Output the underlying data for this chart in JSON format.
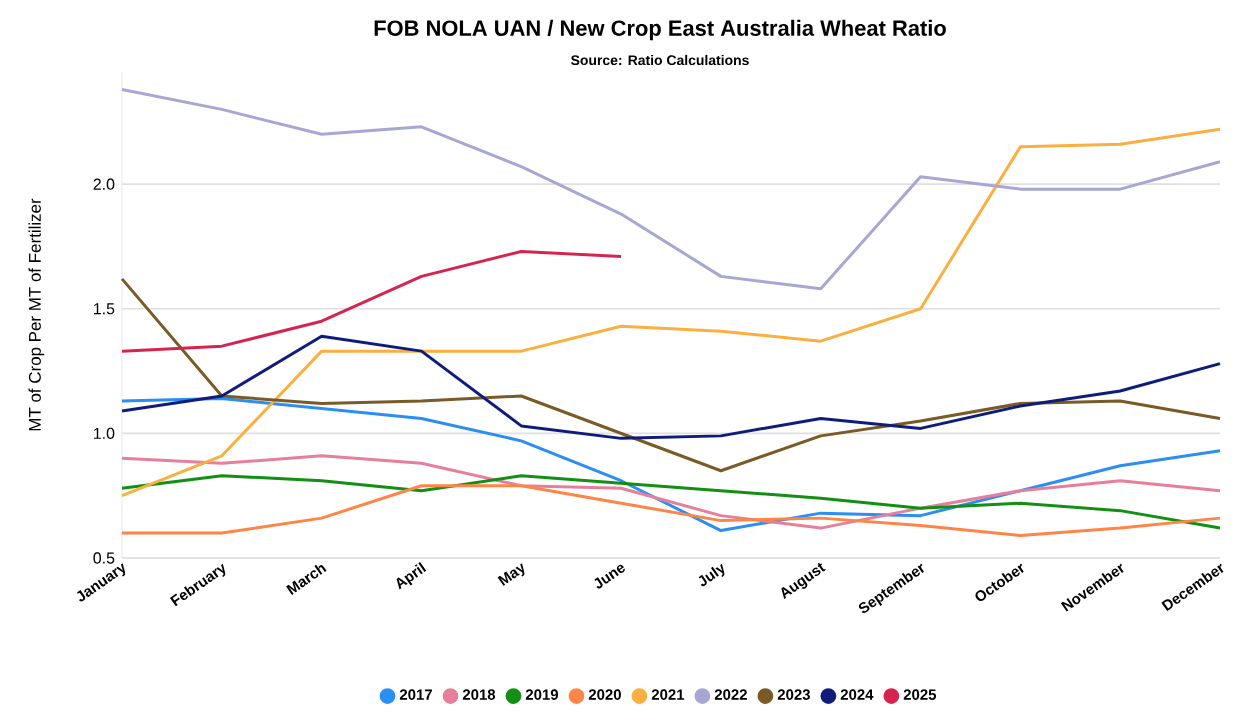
{
  "chart_data": {
    "type": "line",
    "title": "FOB NOLA UAN / New Crop East Australia Wheat Ratio",
    "subtitle": "Source: Ratio Calculations",
    "ylabel": "MT of Crop Per MT of Fertilizer",
    "categories": [
      "January",
      "February",
      "March",
      "April",
      "May",
      "June",
      "July",
      "August",
      "September",
      "October",
      "November",
      "December"
    ],
    "series": [
      {
        "name": "2017",
        "color": "#2b8ef0",
        "values": [
          1.13,
          1.14,
          1.1,
          1.06,
          0.97,
          0.81,
          0.61,
          0.68,
          0.67,
          0.77,
          0.87,
          0.93
        ]
      },
      {
        "name": "2018",
        "color": "#e57f9c",
        "values": [
          0.9,
          0.88,
          0.91,
          0.88,
          0.79,
          0.78,
          0.67,
          0.62,
          0.7,
          0.77,
          0.81,
          0.77
        ]
      },
      {
        "name": "2019",
        "color": "#138f13",
        "values": [
          0.78,
          0.83,
          0.81,
          0.77,
          0.83,
          0.8,
          0.77,
          0.74,
          0.7,
          0.72,
          0.69,
          0.62
        ]
      },
      {
        "name": "2020",
        "color": "#fd8547",
        "values": [
          0.6,
          0.6,
          0.66,
          0.79,
          0.79,
          0.72,
          0.65,
          0.66,
          0.63,
          0.59,
          0.62,
          0.66
        ]
      },
      {
        "name": "2021",
        "color": "#f9b041",
        "values": [
          0.75,
          0.91,
          1.33,
          1.33,
          1.33,
          1.43,
          1.41,
          1.37,
          1.5,
          2.15,
          2.16,
          2.22
        ]
      },
      {
        "name": "2022",
        "color": "#a6a8d3",
        "values": [
          2.38,
          2.3,
          2.2,
          2.23,
          2.07,
          1.88,
          1.63,
          1.58,
          2.03,
          1.98,
          1.98,
          2.09
        ]
      },
      {
        "name": "2023",
        "color": "#7a5a26",
        "values": [
          1.62,
          1.15,
          1.12,
          1.13,
          1.15,
          1.0,
          0.85,
          0.99,
          1.05,
          1.12,
          1.13,
          1.06
        ]
      },
      {
        "name": "2024",
        "color": "#101c7a",
        "values": [
          1.09,
          1.15,
          1.39,
          1.33,
          1.03,
          0.98,
          0.99,
          1.06,
          1.02,
          1.11,
          1.17,
          1.28
        ]
      },
      {
        "name": "2025",
        "color": "#d4244f",
        "values": [
          1.33,
          1.35,
          1.45,
          1.63,
          1.73,
          1.71,
          null,
          null,
          null,
          null,
          null,
          null
        ]
      }
    ],
    "ylim": [
      0.5,
      2.45
    ],
    "yticks": [
      {
        "value": 0.5,
        "label": "0.5"
      },
      {
        "value": 1.0,
        "label": "1.0"
      },
      {
        "value": 1.5,
        "label": "1.5"
      },
      {
        "value": 2.0,
        "label": "2.0"
      }
    ],
    "grid": "y",
    "legend": "bottom",
    "line_style": "solid"
  }
}
